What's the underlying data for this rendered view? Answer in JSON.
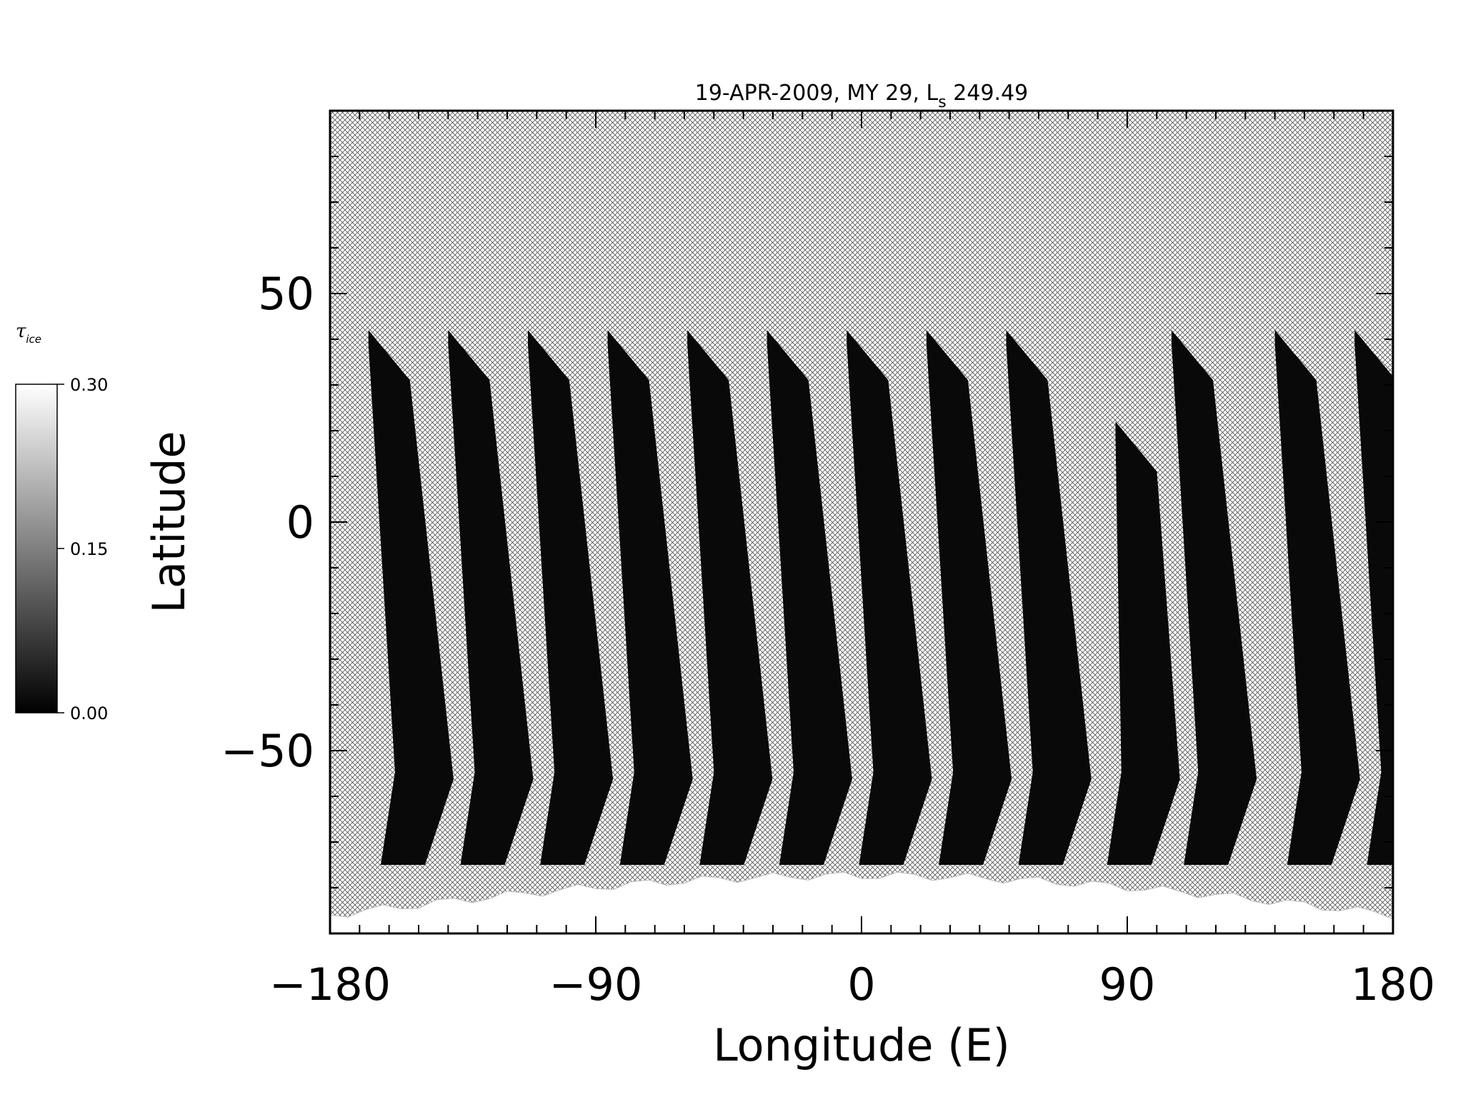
{
  "chart_data": {
    "type": "heatmap",
    "title_prefix": "19-APR-2009, MY 29,  L",
    "title_subscript": "s",
    "title_suffix": " 249.49",
    "xlabel": "Longitude (E)",
    "ylabel": "Latitude",
    "xlim": [
      -180,
      180
    ],
    "ylim": [
      -90,
      90
    ],
    "x_ticks": [
      {
        "value": -180,
        "label": "−180"
      },
      {
        "value": -90,
        "label": "−90"
      },
      {
        "value": 0,
        "label": "0"
      },
      {
        "value": 90,
        "label": "90"
      },
      {
        "value": 180,
        "label": "180"
      }
    ],
    "y_ticks": [
      {
        "value": -50,
        "label": "−50"
      },
      {
        "value": 0,
        "label": "0"
      },
      {
        "value": 50,
        "label": "50"
      }
    ],
    "x_minor_step": 10,
    "y_minor_step": 10,
    "colorbar": {
      "title": "τ",
      "title_subscript": "ice",
      "range": [
        0.0,
        0.3
      ],
      "ticks": [
        {
          "value": 0.0,
          "label": "0.00"
        },
        {
          "value": 0.15,
          "label": "0.15"
        },
        {
          "value": 0.3,
          "label": "0.30"
        }
      ]
    },
    "no_data_fill": "crosshatch",
    "swaths": [
      {
        "lon_top": -167,
        "lon_bottom": -158,
        "lat_top": 42,
        "lat_bottom": -75,
        "value": 0.01
      },
      {
        "lon_top": -140,
        "lon_bottom": -131,
        "lat_top": 42,
        "lat_bottom": -75,
        "value": 0.01
      },
      {
        "lon_top": -113,
        "lon_bottom": -104,
        "lat_top": 42,
        "lat_bottom": -75,
        "value": 0.01
      },
      {
        "lon_top": -86,
        "lon_bottom": -77,
        "lat_top": 42,
        "lat_bottom": -75,
        "value": 0.01
      },
      {
        "lon_top": -59,
        "lon_bottom": -50,
        "lat_top": 42,
        "lat_bottom": -75,
        "value": 0.01
      },
      {
        "lon_top": -32,
        "lon_bottom": -23,
        "lat_top": 42,
        "lat_bottom": -75,
        "value": 0.01
      },
      {
        "lon_top": -5,
        "lon_bottom": 4,
        "lat_top": 42,
        "lat_bottom": -75,
        "value": 0.01
      },
      {
        "lon_top": 22,
        "lon_bottom": 31,
        "lat_top": 42,
        "lat_bottom": -75,
        "value": 0.01
      },
      {
        "lon_top": 49,
        "lon_bottom": 58,
        "lat_top": 42,
        "lat_bottom": -75,
        "value": 0.01
      },
      {
        "lon_top": 86,
        "lon_bottom": 88,
        "lat_top": 22,
        "lat_bottom": -75,
        "value": 0.01
      },
      {
        "lon_top": 105,
        "lon_bottom": 114,
        "lat_top": 42,
        "lat_bottom": -75,
        "value": 0.01
      },
      {
        "lon_top": 140,
        "lon_bottom": 149,
        "lat_top": 42,
        "lat_bottom": -75,
        "value": 0.01
      },
      {
        "lon_top": 167,
        "lon_bottom": 176,
        "lat_top": 42,
        "lat_bottom": -75,
        "value": 0.01
      }
    ],
    "polar_cap": {
      "lat_edge": -75,
      "value": 0.3
    }
  }
}
